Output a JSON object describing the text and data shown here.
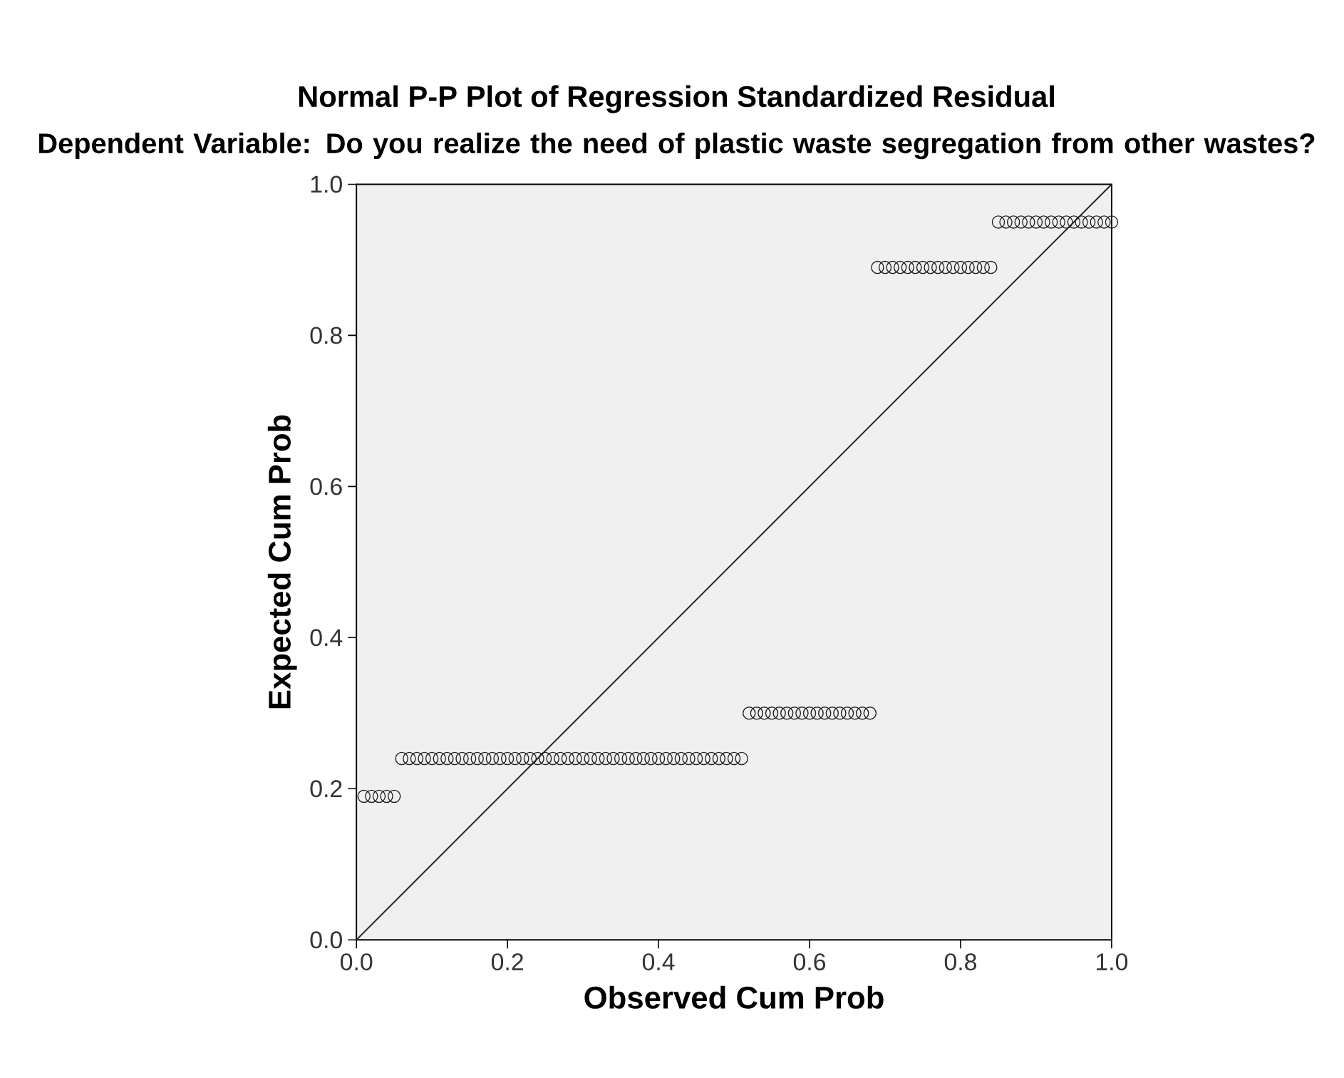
{
  "chart_data": {
    "type": "scatter",
    "title": "Normal P-P Plot of Regression Standardized Residual",
    "subtitle": "Dependent Variable: Do you realize the need of plastic waste segregation from other wastes?",
    "xlabel": "Observed Cum Prob",
    "ylabel": "Expected Cum Prob",
    "xlim": [
      0,
      1
    ],
    "ylim": [
      0,
      1
    ],
    "xticks": [
      {
        "value": 0,
        "label": "0.0"
      },
      0.2,
      0.4,
      0.6,
      0.8,
      {
        "value": 1,
        "label": "1.0"
      }
    ],
    "yticks": [
      {
        "value": 0,
        "label": "0.0"
      },
      0.2,
      0.4,
      0.6,
      0.8,
      {
        "value": 1,
        "label": "1.0"
      }
    ],
    "marker": "circle",
    "legend": false,
    "grid": false,
    "series": [
      {
        "color": "#222222",
        "x": [
          0.01,
          0.02,
          0.03,
          0.04,
          0.05,
          0.06,
          0.07,
          0.08,
          0.09,
          0.1,
          0.11,
          0.12,
          0.13,
          0.14,
          0.15,
          0.16,
          0.17,
          0.18,
          0.19,
          0.2,
          0.21,
          0.22,
          0.23,
          0.24,
          0.25,
          0.26,
          0.27,
          0.28,
          0.29,
          0.3,
          0.31,
          0.32,
          0.33,
          0.34,
          0.35,
          0.36,
          0.37,
          0.38,
          0.39,
          0.4,
          0.41,
          0.42,
          0.43,
          0.44,
          0.45,
          0.46,
          0.47,
          0.48,
          0.49,
          0.5,
          0.51,
          0.52,
          0.53,
          0.54,
          0.55,
          0.56,
          0.57,
          0.58,
          0.59,
          0.6,
          0.61,
          0.62,
          0.63,
          0.64,
          0.65,
          0.66,
          0.67,
          0.68,
          0.69,
          0.7,
          0.71,
          0.72,
          0.73,
          0.74,
          0.75,
          0.76,
          0.77,
          0.78,
          0.79,
          0.8,
          0.81,
          0.82,
          0.83,
          0.84,
          0.85,
          0.86,
          0.87,
          0.88,
          0.89,
          0.9,
          0.91,
          0.92,
          0.93,
          0.94,
          0.95,
          0.96,
          0.97,
          0.98,
          0.99,
          1.0
        ],
        "values": [
          0.19,
          0.19,
          0.19,
          0.19,
          0.19,
          0.24,
          0.24,
          0.24,
          0.24,
          0.24,
          0.24,
          0.24,
          0.24,
          0.24,
          0.24,
          0.24,
          0.24,
          0.24,
          0.24,
          0.24,
          0.24,
          0.24,
          0.24,
          0.24,
          0.24,
          0.24,
          0.24,
          0.24,
          0.24,
          0.24,
          0.24,
          0.24,
          0.24,
          0.24,
          0.24,
          0.24,
          0.24,
          0.24,
          0.24,
          0.24,
          0.24,
          0.24,
          0.24,
          0.24,
          0.24,
          0.24,
          0.24,
          0.24,
          0.24,
          0.24,
          0.24,
          0.3,
          0.3,
          0.3,
          0.3,
          0.3,
          0.3,
          0.3,
          0.3,
          0.3,
          0.3,
          0.3,
          0.3,
          0.3,
          0.3,
          0.3,
          0.3,
          0.3,
          0.89,
          0.89,
          0.89,
          0.89,
          0.89,
          0.89,
          0.89,
          0.89,
          0.89,
          0.89,
          0.89,
          0.89,
          0.89,
          0.89,
          0.89,
          0.89,
          0.95,
          0.95,
          0.95,
          0.95,
          0.95,
          0.95,
          0.95,
          0.95,
          0.95,
          0.95,
          0.95,
          0.95,
          0.95,
          0.95,
          0.95,
          0.95
        ]
      },
      {
        "type": "line",
        "marker": "none",
        "color": "#222222",
        "x": [
          0,
          1
        ],
        "values": [
          0,
          1
        ]
      }
    ]
  }
}
